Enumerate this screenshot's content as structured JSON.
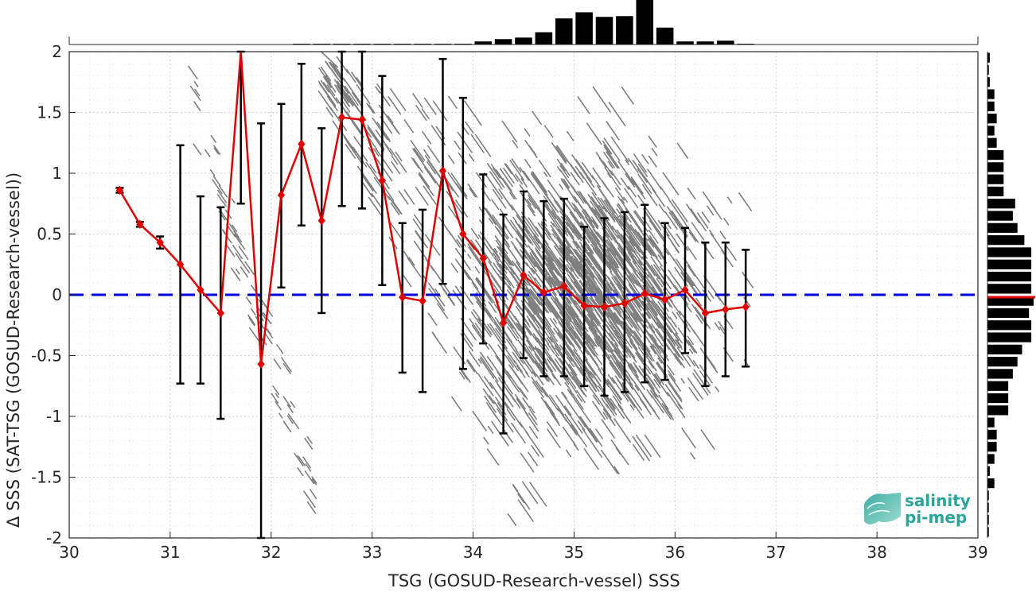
{
  "chart_data": {
    "type": "scatter",
    "xlabel": "TSG (GOSUD-Research-vessel) SSS",
    "ylabel": "Δ SSS (SAT-TSG (GOSUD-Research-vessel))",
    "xlim": [
      30,
      39
    ],
    "ylim": [
      -2,
      2
    ],
    "x_ticks": [
      "30",
      "31",
      "32",
      "33",
      "34",
      "35",
      "36",
      "37",
      "38",
      "39"
    ],
    "y_ticks": [
      "-2",
      "-1.5",
      "-1",
      "-0.5",
      "0",
      "0.5",
      "1",
      "1.5",
      "2"
    ],
    "grid": true,
    "reference_line": {
      "y": 0,
      "style": "dashed",
      "color": "#0000dd"
    },
    "mean_series": {
      "color": "#e00000",
      "x": [
        30.5,
        30.7,
        30.9,
        31.1,
        31.3,
        31.5,
        31.7,
        31.9,
        32.1,
        32.3,
        32.5,
        32.7,
        32.9,
        33.1,
        33.3,
        33.5,
        33.7,
        33.9,
        34.1,
        34.3,
        34.5,
        34.7,
        34.9,
        35.1,
        35.3,
        35.5,
        35.7,
        35.9,
        36.1,
        36.3,
        36.5,
        36.7
      ],
      "mean": [
        0.86,
        0.58,
        0.43,
        0.25,
        0.04,
        -0.15,
        2.3,
        -0.57,
        0.82,
        1.24,
        0.61,
        1.46,
        1.44,
        0.94,
        -0.02,
        -0.05,
        1.02,
        0.5,
        0.3,
        -0.23,
        0.16,
        0.02,
        0.07,
        -0.09,
        -0.1,
        -0.07,
        0.01,
        -0.04,
        0.04,
        -0.15,
        -0.12,
        -0.1
      ],
      "lower": [
        0.84,
        0.56,
        0.38,
        -0.73,
        -0.73,
        -1.02,
        0.75,
        -2.0,
        0.06,
        0.57,
        -0.15,
        0.73,
        0.71,
        0.08,
        -0.64,
        -0.8,
        0.09,
        -0.61,
        -0.4,
        -1.14,
        -0.52,
        -0.67,
        -0.67,
        -0.75,
        -0.83,
        -0.8,
        -0.72,
        -0.7,
        -0.48,
        -0.75,
        -0.67,
        -0.59
      ],
      "upper": [
        0.88,
        0.6,
        0.48,
        1.23,
        0.81,
        0.72,
        2.0,
        1.41,
        1.57,
        1.9,
        1.37,
        2.0,
        2.0,
        1.8,
        0.59,
        0.7,
        1.94,
        1.62,
        0.99,
        0.66,
        0.85,
        0.77,
        0.79,
        0.56,
        0.63,
        0.68,
        0.74,
        0.59,
        0.55,
        0.43,
        0.43,
        0.37
      ]
    },
    "scatter_density": "grey diagonal point streaks, densest near x 34.5–36, y -1 to 1",
    "top_histogram": {
      "bin_centers": [
        30.1,
        30.3,
        30.5,
        30.7,
        30.9,
        31.1,
        31.3,
        31.5,
        31.7,
        31.9,
        32.1,
        32.3,
        32.5,
        32.7,
        32.9,
        33.1,
        33.3,
        33.5,
        33.7,
        33.9,
        34.1,
        34.3,
        34.5,
        34.7,
        34.9,
        35.1,
        35.3,
        35.5,
        35.7,
        35.9,
        36.1,
        36.3,
        36.5,
        36.7
      ],
      "counts": [
        0.2,
        0.2,
        0.2,
        0.2,
        0.2,
        0.2,
        0.2,
        0.2,
        0.2,
        0.2,
        0.2,
        0.5,
        0.5,
        0.5,
        0.5,
        0.5,
        0.5,
        0.5,
        0.5,
        0.5,
        2,
        3.5,
        4.5,
        8,
        17,
        21,
        18,
        18.5,
        29,
        11,
        2,
        2,
        2.5,
        0.5
      ]
    },
    "right_histogram": {
      "bin_centers": [
        1.95,
        1.85,
        1.75,
        1.65,
        1.55,
        1.45,
        1.35,
        1.25,
        1.15,
        1.05,
        0.95,
        0.85,
        0.75,
        0.65,
        0.55,
        0.45,
        0.35,
        0.25,
        0.15,
        0.05,
        -0.05,
        -0.15,
        -0.25,
        -0.35,
        -0.45,
        -0.55,
        -0.65,
        -0.75,
        -0.85,
        -0.95,
        -1.05,
        -1.15,
        -1.25,
        -1.35,
        -1.45,
        -1.55,
        -1.65,
        -1.75,
        -1.85,
        -1.95
      ],
      "counts": [
        0.5,
        0.3,
        0.5,
        1.5,
        1.5,
        2,
        1.5,
        2,
        3.5,
        3.5,
        3.5,
        3.5,
        6,
        5.5,
        6.5,
        8,
        9.5,
        9.5,
        9.5,
        9.5,
        10,
        9,
        9.5,
        9.5,
        7.5,
        6.5,
        5.5,
        4.5,
        4.5,
        4.5,
        1.5,
        2,
        2,
        1.5,
        0.5,
        1.5,
        0.3,
        0.3,
        0.3,
        0.3
      ],
      "mean_marker_y": -0.02
    }
  },
  "logo": {
    "line1": "salinity",
    "line2": "pi-mep",
    "color": "#2ba59a"
  }
}
